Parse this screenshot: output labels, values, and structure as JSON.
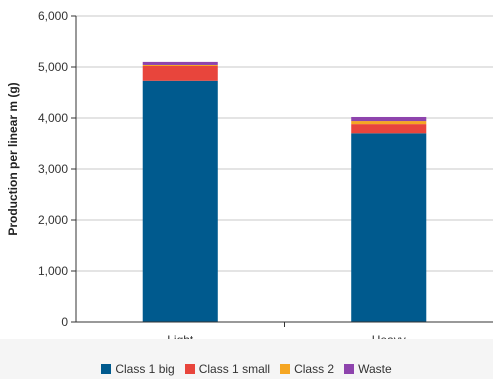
{
  "chart_data": {
    "type": "bar",
    "stacked": true,
    "categories": [
      "Light",
      "Heavy"
    ],
    "series": [
      {
        "name": "Class 1 big",
        "color": "#005a8e",
        "values": [
          4730,
          3700
        ]
      },
      {
        "name": "Class 1 small",
        "color": "#e8453c",
        "values": [
          290,
          180
        ]
      },
      {
        "name": "Class 2",
        "color": "#f5a623",
        "values": [
          20,
          60
        ]
      },
      {
        "name": "Waste",
        "color": "#8e44ad",
        "values": [
          60,
          80
        ]
      }
    ],
    "ylabel": "Production per linear m (g)",
    "ylim": [
      0,
      6000
    ],
    "yticks": [
      0,
      1000,
      2000,
      3000,
      4000,
      5000,
      6000
    ],
    "ytick_labels": [
      "0",
      "1,000",
      "2,000",
      "3,000",
      "4,000",
      "5,000",
      "6,000"
    ],
    "grid": true,
    "legend_position": "bottom"
  }
}
